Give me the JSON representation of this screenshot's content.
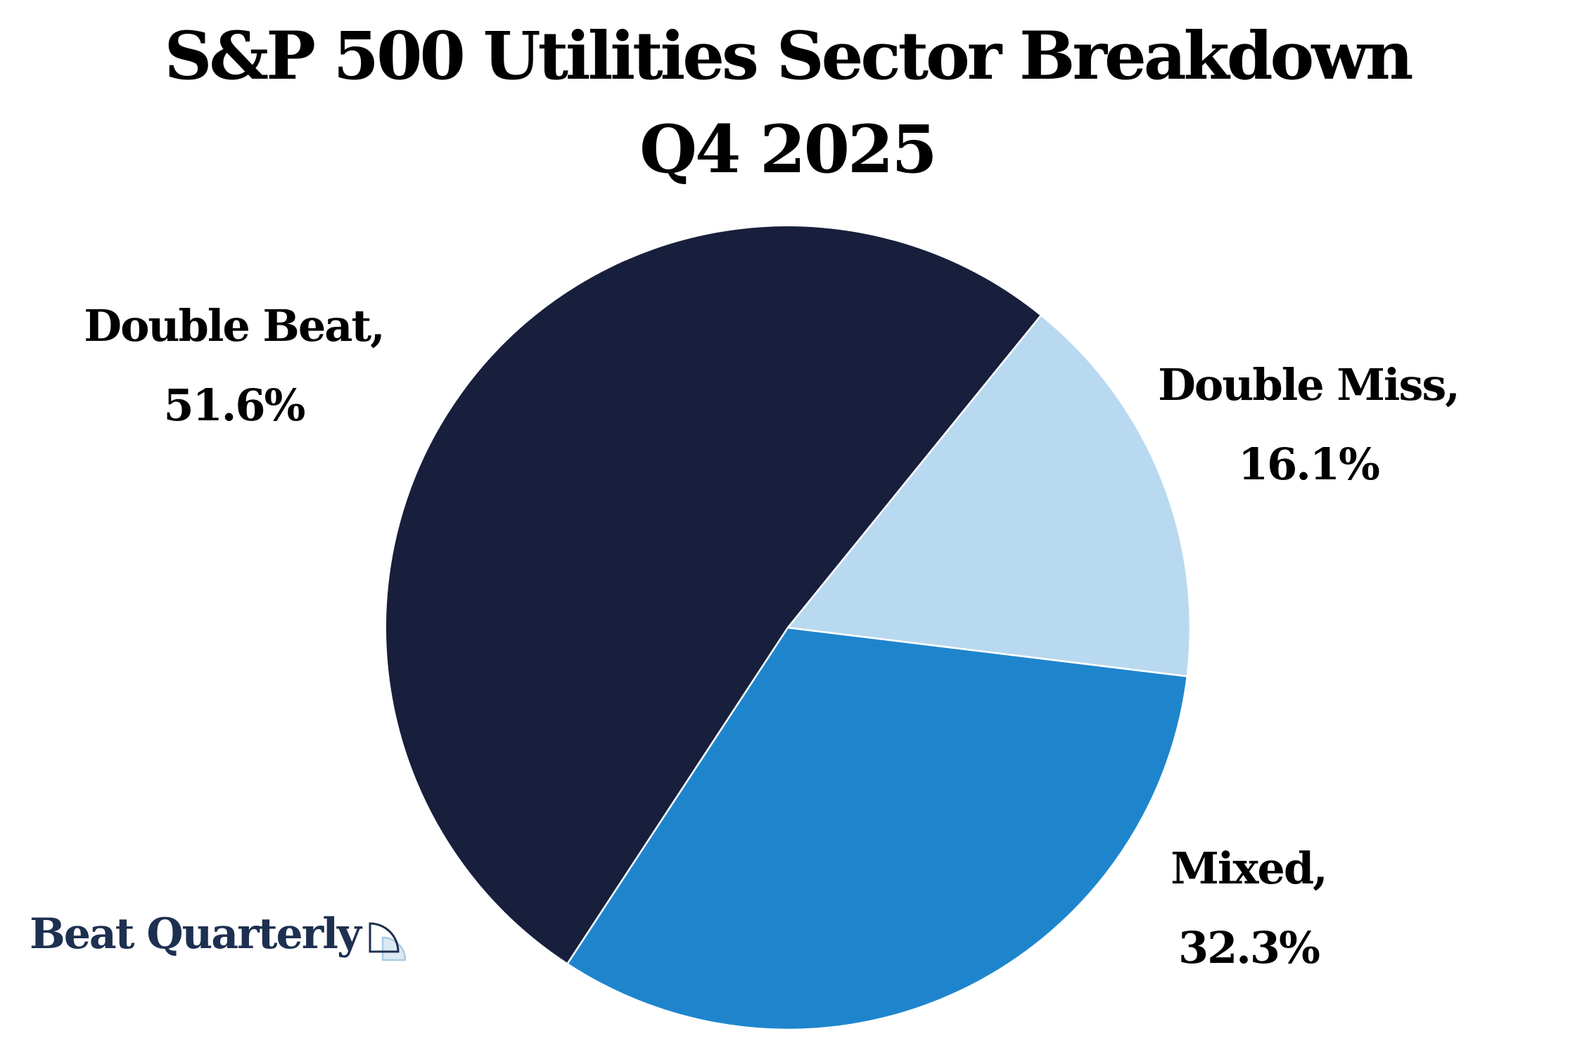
{
  "page": {
    "background": "#FFFFFF"
  },
  "title": {
    "line1": "S&P 500 Utilities Sector Breakdown",
    "line2": "Q4 2025",
    "color": "#000000"
  },
  "chart_data": {
    "type": "pie",
    "title": "S&P 500 Utilities Sector Breakdown Q4 2025",
    "unit": "percent",
    "start_angle_deg": 51,
    "direction": "counterclockwise",
    "slice_border_color": "#FFFFFF",
    "legend_position": "outside-labels",
    "slices": [
      {
        "name": "Double Beat",
        "pct": 51.6,
        "color": "#171F3C",
        "label_line1": "Double Beat,",
        "label_line2": "51.6%"
      },
      {
        "name": "Mixed",
        "pct": 32.3,
        "color": "#1E85CD",
        "label_line1": "Mixed,",
        "label_line2": "32.3%"
      },
      {
        "name": "Double Miss",
        "pct": 16.1,
        "color": "#B9D9F0",
        "label_line1": "Double Miss,",
        "label_line2": "16.1%"
      }
    ]
  },
  "branding": {
    "logo_text": "Beat Quarterly",
    "logo_color": "#1E3050",
    "logo_icon": "quarter-circle-icon",
    "icon_outline_color": "#1E3050",
    "icon_accent_stroke": "#A9CBE4",
    "icon_accent_fill": "#DCE9F5"
  }
}
